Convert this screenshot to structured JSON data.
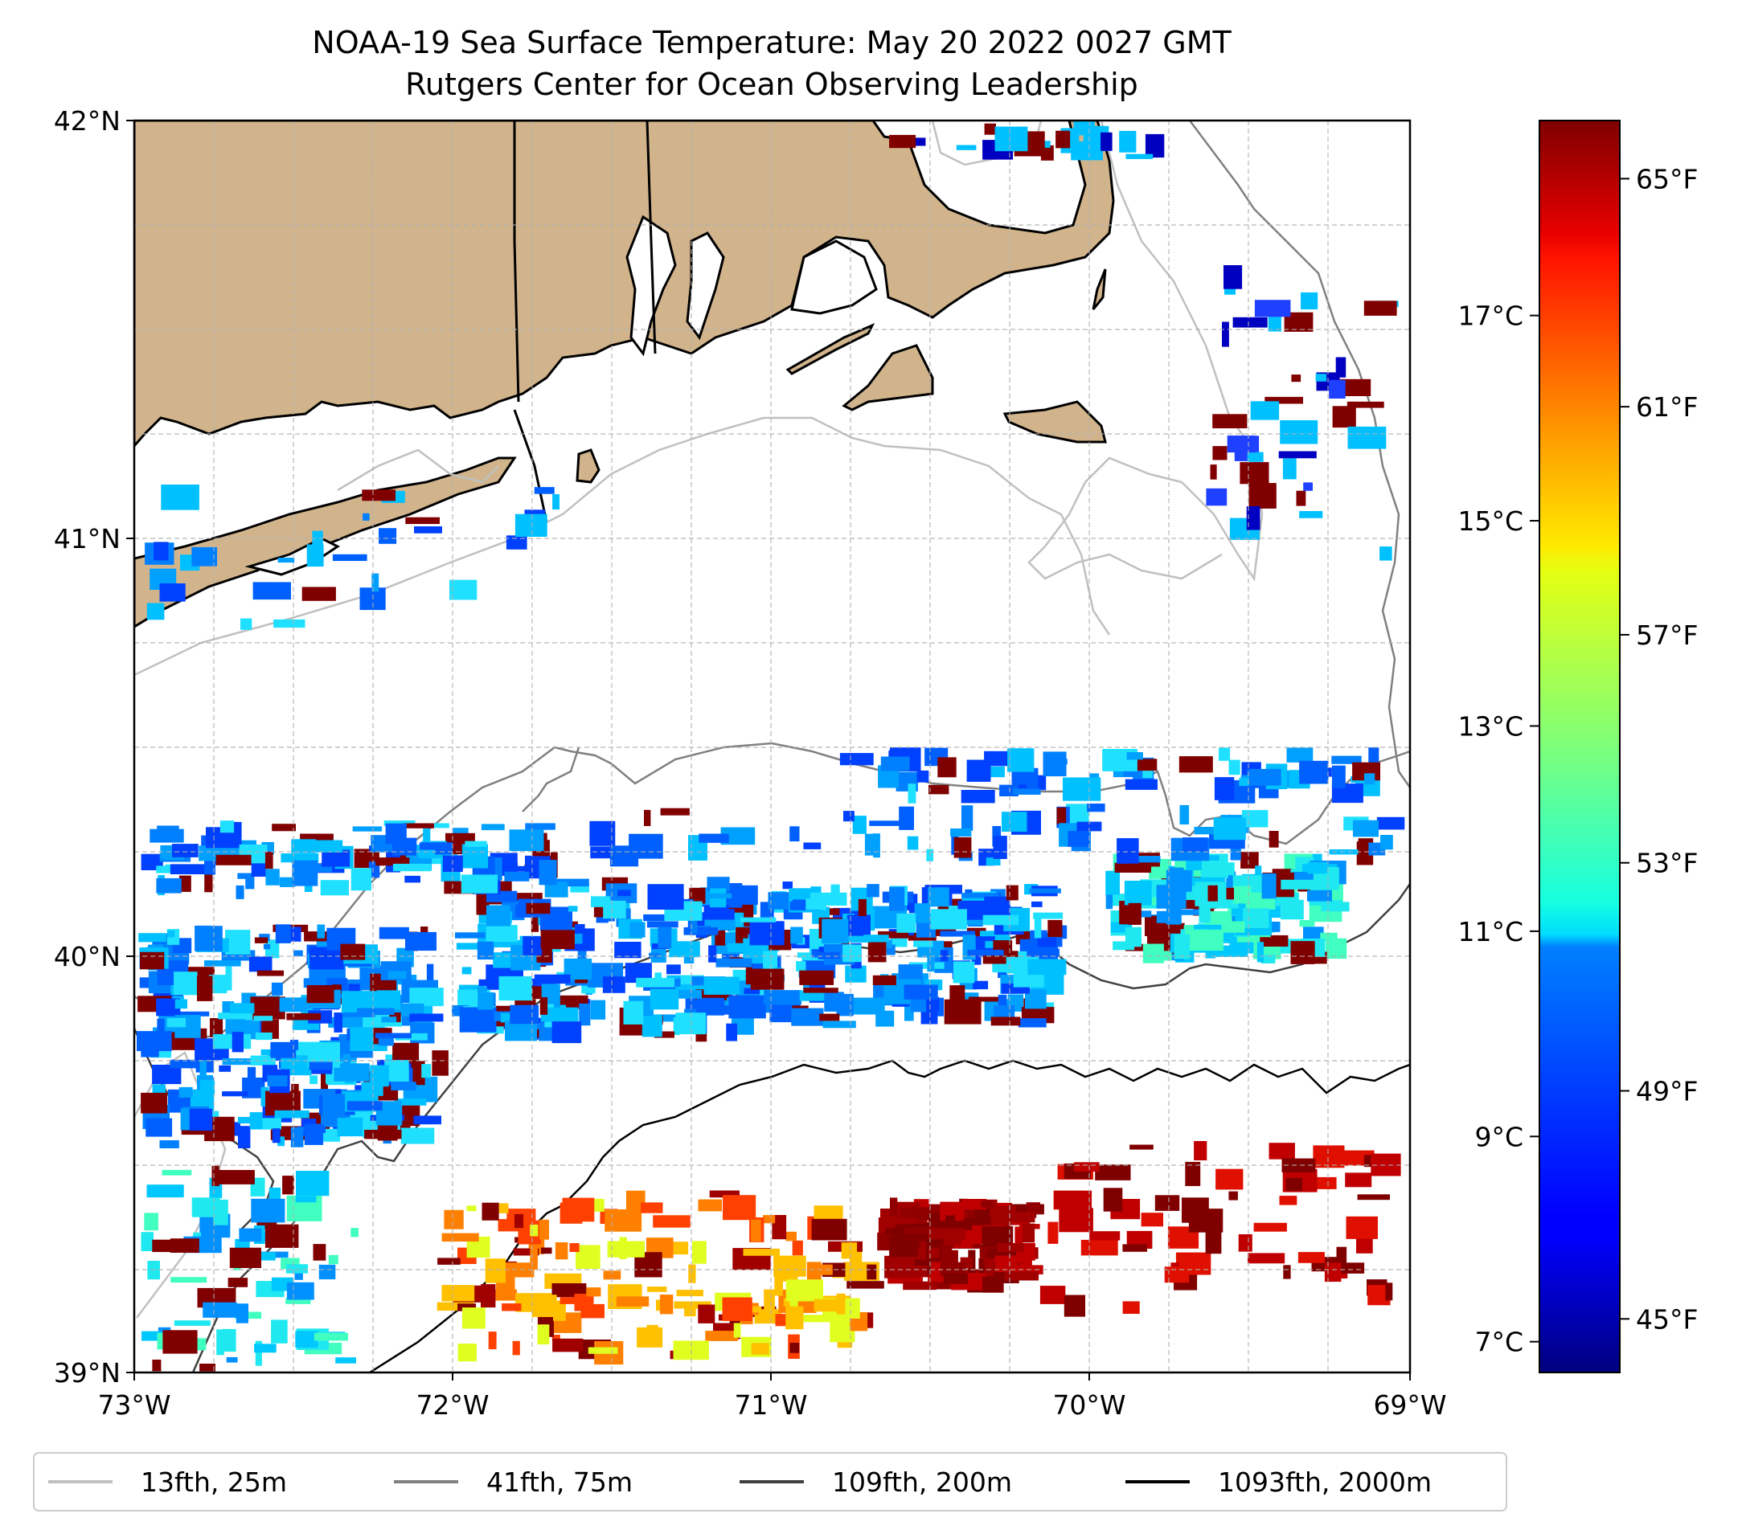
{
  "title": {
    "line1": "NOAA-19 Sea Surface Temperature: May 20 2022 0027 GMT",
    "line2": "Rutgers Center for Ocean Observing Leadership"
  },
  "map": {
    "lon_range": [
      -73,
      -69
    ],
    "lat_range": [
      39,
      42
    ],
    "x_ticks": [
      "73°W",
      "72°W",
      "71°W",
      "70°W",
      "69°W"
    ],
    "y_ticks": [
      "42°N",
      "41°N",
      "40°N",
      "39°N"
    ]
  },
  "colorbar": {
    "colormap": "jet",
    "temp_range_c": [
      6.7,
      18.9
    ],
    "celsius_ticks": [
      "17°C",
      "15°C",
      "13°C",
      "11°C",
      "9°C",
      "7°C"
    ],
    "celsius_values": [
      17,
      15,
      13,
      11,
      9,
      7
    ],
    "fahrenheit_ticks": [
      "65°F",
      "61°F",
      "57°F",
      "53°F",
      "49°F",
      "45°F"
    ],
    "fahrenheit_values": [
      65,
      61,
      57,
      53,
      49,
      45
    ]
  },
  "legend": {
    "items": [
      {
        "label": "13fth, 25m",
        "color": "#c0c0c0"
      },
      {
        "label": "41fth, 75m",
        "color": "#808080"
      },
      {
        "label": "109fth, 200m",
        "color": "#404040"
      },
      {
        "label": "1093fth, 2000m",
        "color": "#000000"
      }
    ]
  },
  "colors": {
    "land": "#d2b48c",
    "coast": "#000000",
    "grid": "#b0b0b0"
  }
}
